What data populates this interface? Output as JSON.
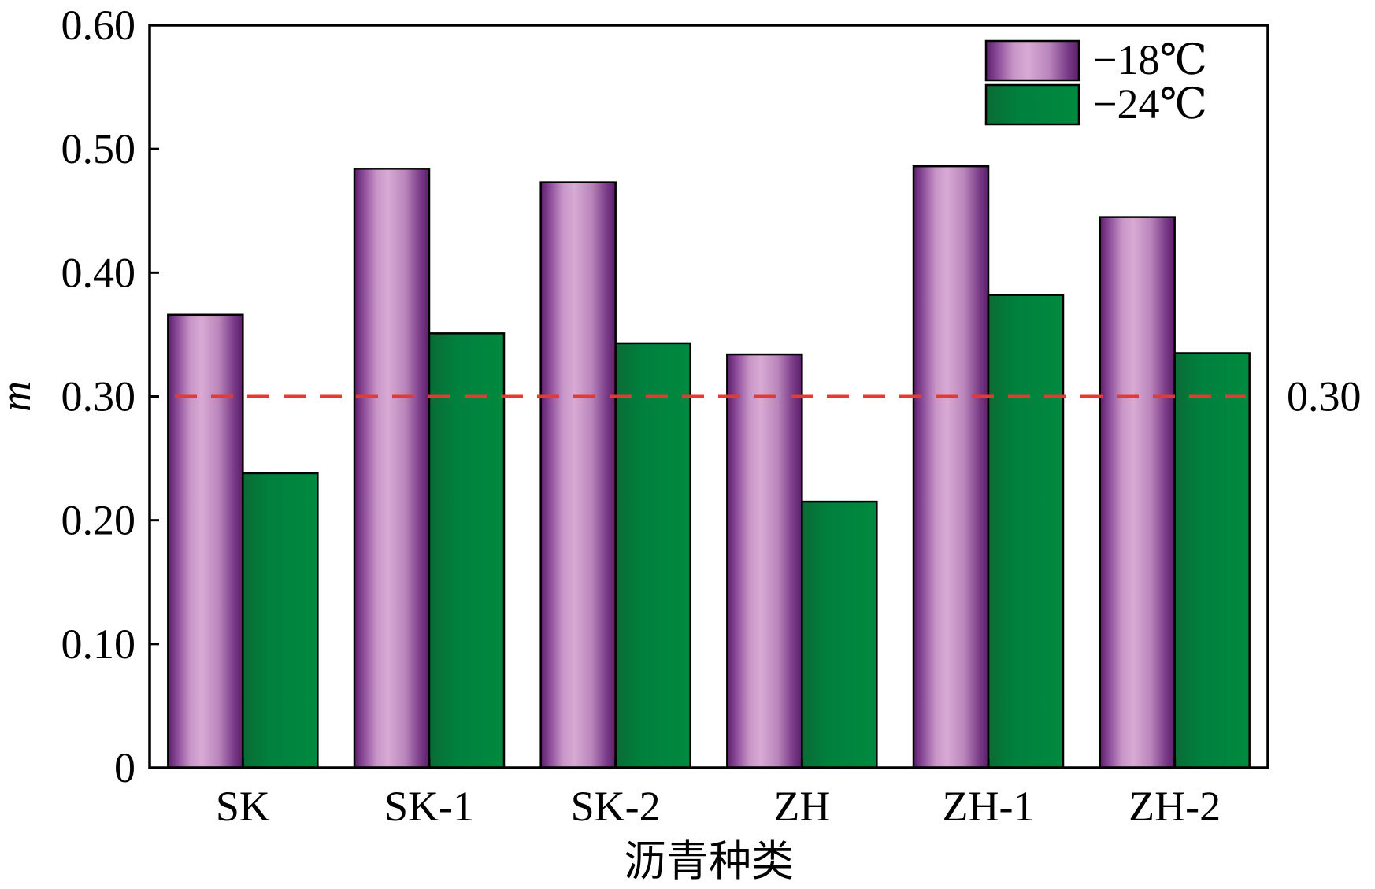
{
  "chart_data": {
    "type": "bar",
    "title": "",
    "xlabel": "沥青种类",
    "ylabel": "m",
    "ylim": [
      0,
      0.6
    ],
    "yticks": [
      "0",
      "0.10",
      "0.20",
      "0.30",
      "0.40",
      "0.50",
      "0.60"
    ],
    "categories": [
      "SK",
      "SK-1",
      "SK-2",
      "ZH",
      "ZH-1",
      "ZH-2"
    ],
    "series": [
      {
        "name": "−18℃",
        "color": "#b15fb0",
        "values": [
          0.366,
          0.484,
          0.473,
          0.334,
          0.486,
          0.445
        ]
      },
      {
        "name": "−24℃",
        "color": "#00793a",
        "values": [
          0.238,
          0.351,
          0.343,
          0.215,
          0.382,
          0.335
        ]
      }
    ],
    "reference_line": {
      "value": 0.3,
      "label": "0.30",
      "color": "#e23b33",
      "style": "dashed"
    },
    "legend_position": "top-right",
    "grid": false
  }
}
